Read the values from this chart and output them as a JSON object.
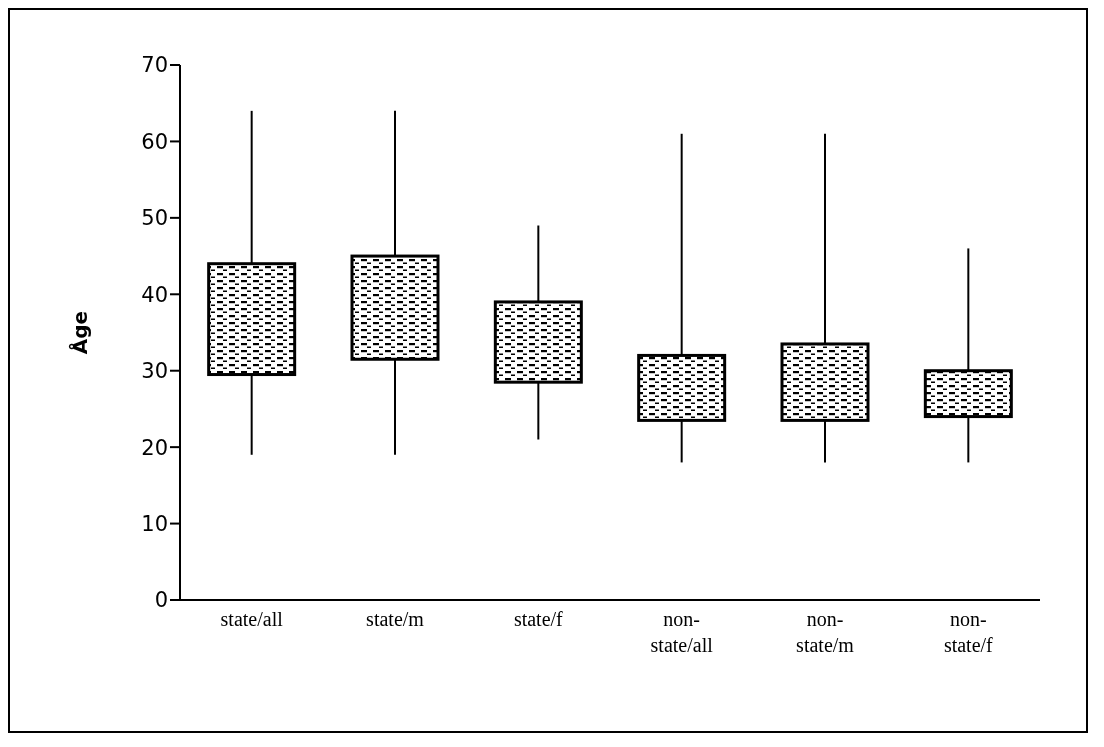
{
  "chart_data": {
    "type": "box",
    "ylabel": "Åge",
    "color": "#000000",
    "categories": [
      "state/all",
      "state/m",
      "state/f",
      "non-state/all",
      "non-state/m",
      "non-state/f"
    ],
    "boxes": [
      {
        "low": 19,
        "q1": 29.5,
        "q3": 44,
        "high": 64
      },
      {
        "low": 19,
        "q1": 31.5,
        "q3": 45,
        "high": 64
      },
      {
        "low": 21,
        "q1": 28.5,
        "q3": 39,
        "high": 49
      },
      {
        "low": 18,
        "q1": 23.5,
        "q3": 32,
        "high": 61
      },
      {
        "low": 18,
        "q1": 23.5,
        "q3": 33.5,
        "high": 61
      },
      {
        "low": 18,
        "q1": 24,
        "q3": 30,
        "high": 46
      }
    ],
    "ylim": [
      0,
      70
    ],
    "yticks": [
      0,
      10,
      20,
      30,
      40,
      50,
      60,
      70
    ],
    "grid": false
  }
}
